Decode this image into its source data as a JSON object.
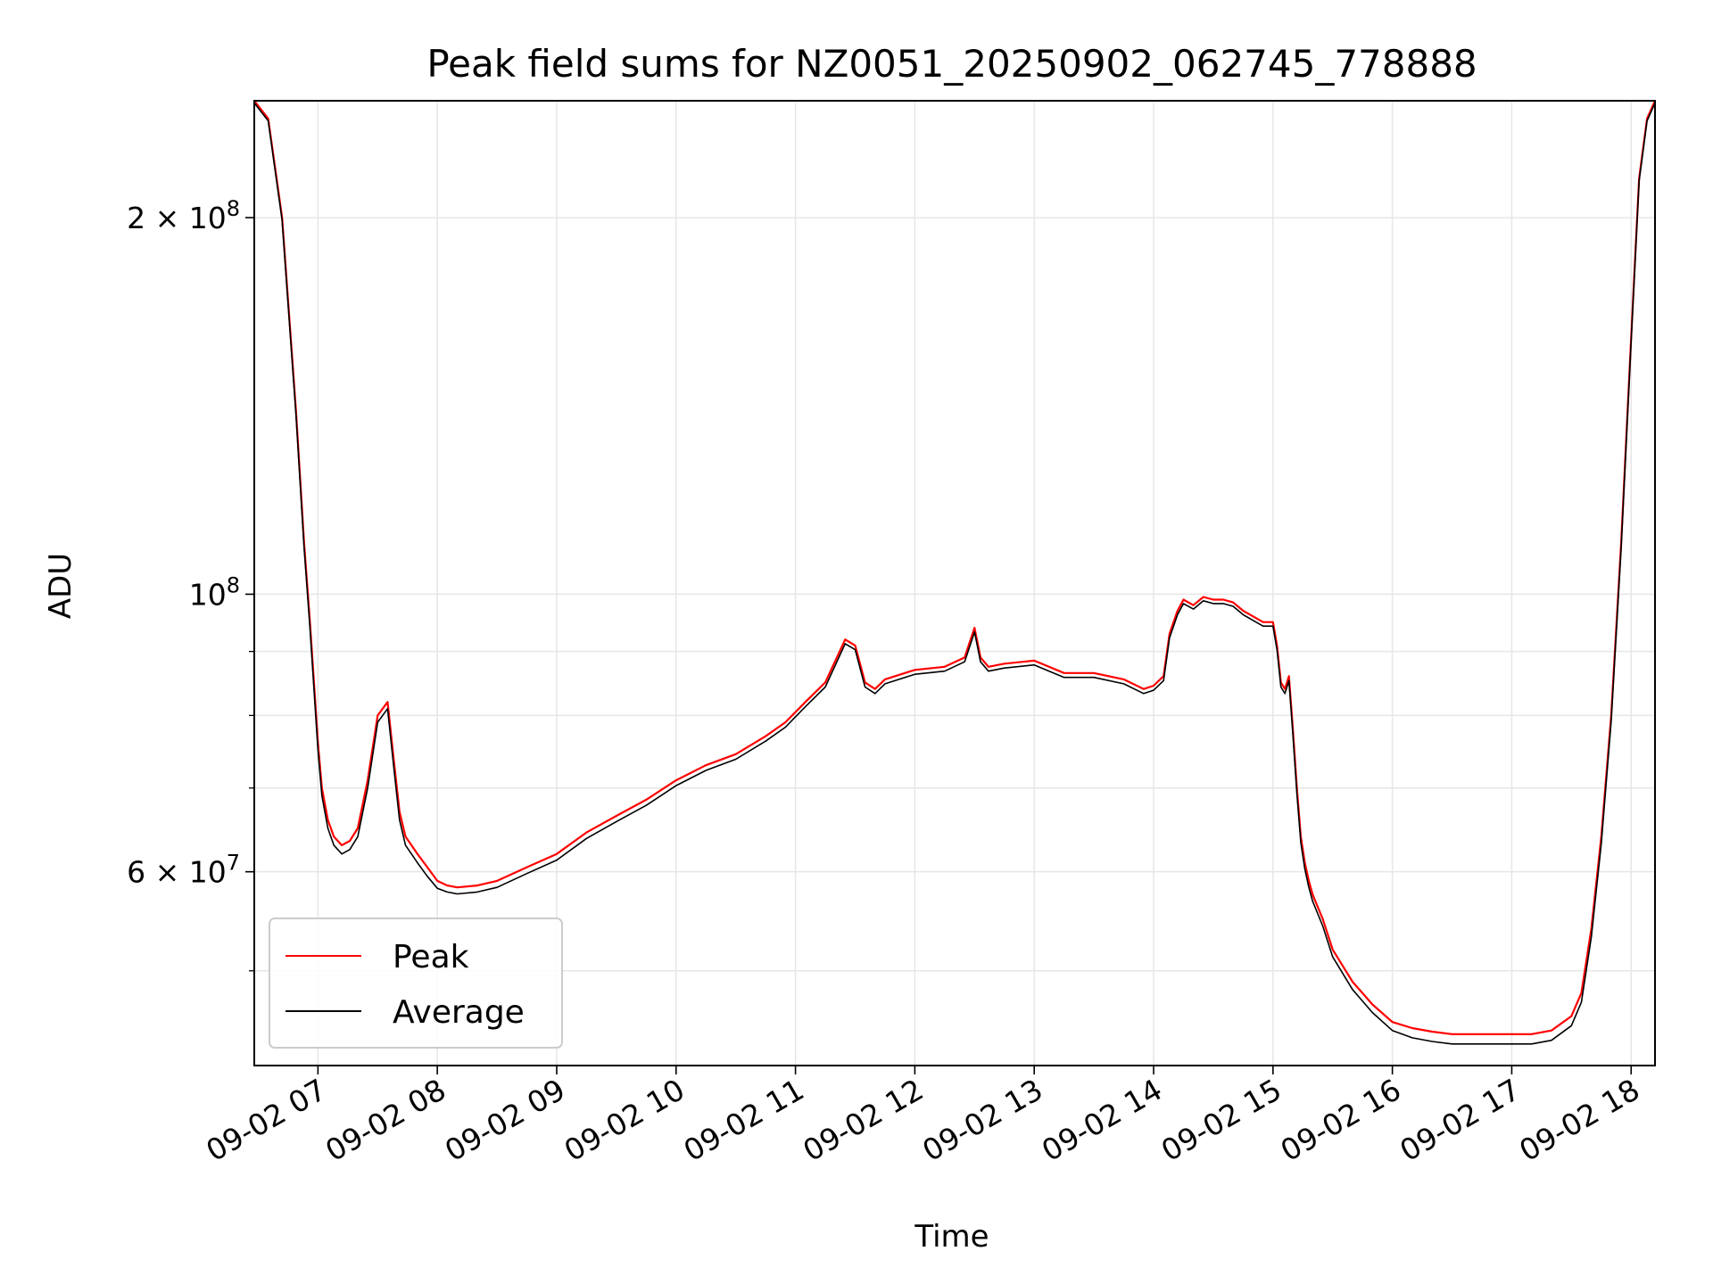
{
  "chart_data": {
    "type": "line",
    "title": "Peak field sums for NZ0051_20250902_062745_778888",
    "xlabel": "Time",
    "ylabel": "ADU",
    "x_scale": "time",
    "y_scale": "log",
    "xlim": [
      "2025-09-02 06:28",
      "2025-09-02 18:12"
    ],
    "ylim": [
      42000000,
      248000000
    ],
    "grid": true,
    "legend_position": "lower-left",
    "x_ticks": [
      {
        "value": "2025-09-02 07:00",
        "label": "09-02 07"
      },
      {
        "value": "2025-09-02 08:00",
        "label": "09-02 08"
      },
      {
        "value": "2025-09-02 09:00",
        "label": "09-02 09"
      },
      {
        "value": "2025-09-02 10:00",
        "label": "09-02 10"
      },
      {
        "value": "2025-09-02 11:00",
        "label": "09-02 11"
      },
      {
        "value": "2025-09-02 12:00",
        "label": "09-02 12"
      },
      {
        "value": "2025-09-02 13:00",
        "label": "09-02 13"
      },
      {
        "value": "2025-09-02 14:00",
        "label": "09-02 14"
      },
      {
        "value": "2025-09-02 15:00",
        "label": "09-02 15"
      },
      {
        "value": "2025-09-02 16:00",
        "label": "09-02 16"
      },
      {
        "value": "2025-09-02 17:00",
        "label": "09-02 17"
      },
      {
        "value": "2025-09-02 18:00",
        "label": "09-02 18"
      }
    ],
    "y_major_ticks": [
      {
        "value": 60000000,
        "mantissa": "6",
        "exponent": "7"
      },
      {
        "value": 100000000,
        "mantissa": "",
        "exponent": "8"
      },
      {
        "value": 200000000,
        "mantissa": "2",
        "exponent": "8"
      }
    ],
    "y_minor_ticks": [
      50000000,
      70000000,
      80000000,
      90000000
    ],
    "series": [
      {
        "name": "Peak",
        "color": "#ff0000",
        "x": [
          "2025-09-02 06:28",
          "2025-09-02 06:35",
          "2025-09-02 06:42",
          "2025-09-02 06:49",
          "2025-09-02 06:53",
          "2025-09-02 06:56",
          "2025-09-02 06:58",
          "2025-09-02 07:00",
          "2025-09-02 07:02",
          "2025-09-02 07:05",
          "2025-09-02 07:08",
          "2025-09-02 07:12",
          "2025-09-02 07:16",
          "2025-09-02 07:20",
          "2025-09-02 07:25",
          "2025-09-02 07:30",
          "2025-09-02 07:35",
          "2025-09-02 07:38",
          "2025-09-02 07:41",
          "2025-09-02 07:44",
          "2025-09-02 07:47",
          "2025-09-02 07:50",
          "2025-09-02 07:55",
          "2025-09-02 08:00",
          "2025-09-02 08:05",
          "2025-09-02 08:10",
          "2025-09-02 08:20",
          "2025-09-02 08:30",
          "2025-09-02 08:45",
          "2025-09-02 09:00",
          "2025-09-02 09:15",
          "2025-09-02 09:30",
          "2025-09-02 09:45",
          "2025-09-02 10:00",
          "2025-09-02 10:15",
          "2025-09-02 10:30",
          "2025-09-02 10:45",
          "2025-09-02 10:55",
          "2025-09-02 11:00",
          "2025-09-02 11:05",
          "2025-09-02 11:15",
          "2025-09-02 11:25",
          "2025-09-02 11:30",
          "2025-09-02 11:35",
          "2025-09-02 11:40",
          "2025-09-02 11:45",
          "2025-09-02 12:00",
          "2025-09-02 12:15",
          "2025-09-02 12:25",
          "2025-09-02 12:30",
          "2025-09-02 12:33",
          "2025-09-02 12:37",
          "2025-09-02 12:45",
          "2025-09-02 13:00",
          "2025-09-02 13:15",
          "2025-09-02 13:30",
          "2025-09-02 13:45",
          "2025-09-02 13:55",
          "2025-09-02 14:00",
          "2025-09-02 14:05",
          "2025-09-02 14:08",
          "2025-09-02 14:12",
          "2025-09-02 14:15",
          "2025-09-02 14:20",
          "2025-09-02 14:25",
          "2025-09-02 14:30",
          "2025-09-02 14:35",
          "2025-09-02 14:40",
          "2025-09-02 14:45",
          "2025-09-02 14:50",
          "2025-09-02 14:55",
          "2025-09-02 15:00",
          "2025-09-02 15:02",
          "2025-09-02 15:04",
          "2025-09-02 15:06",
          "2025-09-02 15:08",
          "2025-09-02 15:10",
          "2025-09-02 15:12",
          "2025-09-02 15:14",
          "2025-09-02 15:16",
          "2025-09-02 15:18",
          "2025-09-02 15:20",
          "2025-09-02 15:25",
          "2025-09-02 15:30",
          "2025-09-02 15:40",
          "2025-09-02 15:50",
          "2025-09-02 16:00",
          "2025-09-02 16:10",
          "2025-09-02 16:20",
          "2025-09-02 16:30",
          "2025-09-02 16:45",
          "2025-09-02 17:00",
          "2025-09-02 17:10",
          "2025-09-02 17:20",
          "2025-09-02 17:30",
          "2025-09-02 17:35",
          "2025-09-02 17:40",
          "2025-09-02 17:45",
          "2025-09-02 17:50",
          "2025-09-02 17:55",
          "2025-09-02 18:00",
          "2025-09-02 18:04",
          "2025-09-02 18:08",
          "2025-09-02 18:12"
        ],
        "values": [
          248000000,
          240000000,
          200000000,
          140000000,
          110000000,
          95000000,
          85000000,
          76000000,
          70000000,
          66000000,
          64000000,
          63000000,
          63500000,
          65000000,
          71000000,
          80000000,
          82000000,
          74000000,
          67000000,
          64000000,
          63000000,
          62000000,
          60500000,
          59000000,
          58500000,
          58300000,
          58500000,
          59000000,
          60500000,
          62000000,
          64500000,
          66500000,
          68500000,
          71000000,
          73000000,
          74500000,
          77000000,
          79000000,
          80500000,
          82000000,
          85000000,
          92000000,
          91000000,
          85000000,
          84000000,
          85500000,
          87000000,
          87500000,
          89000000,
          94000000,
          89000000,
          87500000,
          88000000,
          88500000,
          86500000,
          86500000,
          85500000,
          84000000,
          84500000,
          86000000,
          93000000,
          97000000,
          99000000,
          98000000,
          99500000,
          99000000,
          99000000,
          98500000,
          97000000,
          96000000,
          95000000,
          95000000,
          91000000,
          85000000,
          84000000,
          86000000,
          78000000,
          70000000,
          64000000,
          61000000,
          59000000,
          57500000,
          55000000,
          52000000,
          49000000,
          47000000,
          45500000,
          45000000,
          44700000,
          44500000,
          44500000,
          44500000,
          44500000,
          44800000,
          46000000,
          48000000,
          54000000,
          64000000,
          80000000,
          110000000,
          160000000,
          215000000,
          240000000,
          248000000
        ]
      },
      {
        "name": "Average",
        "color": "#000000",
        "x": [
          "2025-09-02 06:28",
          "2025-09-02 06:35",
          "2025-09-02 06:42",
          "2025-09-02 06:49",
          "2025-09-02 06:53",
          "2025-09-02 06:56",
          "2025-09-02 06:58",
          "2025-09-02 07:00",
          "2025-09-02 07:02",
          "2025-09-02 07:05",
          "2025-09-02 07:08",
          "2025-09-02 07:12",
          "2025-09-02 07:16",
          "2025-09-02 07:20",
          "2025-09-02 07:25",
          "2025-09-02 07:30",
          "2025-09-02 07:35",
          "2025-09-02 07:38",
          "2025-09-02 07:41",
          "2025-09-02 07:44",
          "2025-09-02 07:47",
          "2025-09-02 07:50",
          "2025-09-02 07:55",
          "2025-09-02 08:00",
          "2025-09-02 08:05",
          "2025-09-02 08:10",
          "2025-09-02 08:20",
          "2025-09-02 08:30",
          "2025-09-02 08:45",
          "2025-09-02 09:00",
          "2025-09-02 09:15",
          "2025-09-02 09:30",
          "2025-09-02 09:45",
          "2025-09-02 10:00",
          "2025-09-02 10:15",
          "2025-09-02 10:30",
          "2025-09-02 10:45",
          "2025-09-02 10:55",
          "2025-09-02 11:00",
          "2025-09-02 11:05",
          "2025-09-02 11:15",
          "2025-09-02 11:25",
          "2025-09-02 11:30",
          "2025-09-02 11:35",
          "2025-09-02 11:40",
          "2025-09-02 11:45",
          "2025-09-02 12:00",
          "2025-09-02 12:15",
          "2025-09-02 12:25",
          "2025-09-02 12:30",
          "2025-09-02 12:33",
          "2025-09-02 12:37",
          "2025-09-02 12:45",
          "2025-09-02 13:00",
          "2025-09-02 13:15",
          "2025-09-02 13:30",
          "2025-09-02 13:45",
          "2025-09-02 13:55",
          "2025-09-02 14:00",
          "2025-09-02 14:05",
          "2025-09-02 14:08",
          "2025-09-02 14:12",
          "2025-09-02 14:15",
          "2025-09-02 14:20",
          "2025-09-02 14:25",
          "2025-09-02 14:30",
          "2025-09-02 14:35",
          "2025-09-02 14:40",
          "2025-09-02 14:45",
          "2025-09-02 14:50",
          "2025-09-02 14:55",
          "2025-09-02 15:00",
          "2025-09-02 15:02",
          "2025-09-02 15:04",
          "2025-09-02 15:06",
          "2025-09-02 15:08",
          "2025-09-02 15:10",
          "2025-09-02 15:12",
          "2025-09-02 15:14",
          "2025-09-02 15:16",
          "2025-09-02 15:18",
          "2025-09-02 15:20",
          "2025-09-02 15:25",
          "2025-09-02 15:30",
          "2025-09-02 15:40",
          "2025-09-02 15:50",
          "2025-09-02 16:00",
          "2025-09-02 16:10",
          "2025-09-02 16:20",
          "2025-09-02 16:30",
          "2025-09-02 16:45",
          "2025-09-02 17:00",
          "2025-09-02 17:10",
          "2025-09-02 17:20",
          "2025-09-02 17:30",
          "2025-09-02 17:35",
          "2025-09-02 17:40",
          "2025-09-02 17:45",
          "2025-09-02 17:50",
          "2025-09-02 17:55",
          "2025-09-02 18:00",
          "2025-09-02 18:04",
          "2025-09-02 18:08",
          "2025-09-02 18:12"
        ],
        "values": [
          247000000,
          239000000,
          199000000,
          139000000,
          109000000,
          94000000,
          84000000,
          75000000,
          69000000,
          65000000,
          63000000,
          62000000,
          62500000,
          64000000,
          70000000,
          79000000,
          81000000,
          73000000,
          66000000,
          63000000,
          62000000,
          61000000,
          59500000,
          58200000,
          57800000,
          57600000,
          57800000,
          58300000,
          59800000,
          61300000,
          63800000,
          65800000,
          67800000,
          70300000,
          72300000,
          73800000,
          76300000,
          78300000,
          79800000,
          81300000,
          84300000,
          91300000,
          90300000,
          84300000,
          83300000,
          84800000,
          86300000,
          86800000,
          88300000,
          93300000,
          88300000,
          86800000,
          87300000,
          87800000,
          85800000,
          85800000,
          84800000,
          83300000,
          83800000,
          85300000,
          92300000,
          96300000,
          98300000,
          97300000,
          98800000,
          98300000,
          98300000,
          97800000,
          96300000,
          95300000,
          94300000,
          94300000,
          90300000,
          84300000,
          83300000,
          85300000,
          77300000,
          69300000,
          63300000,
          60300000,
          58300000,
          56800000,
          54300000,
          51300000,
          48300000,
          46300000,
          44800000,
          44200000,
          43900000,
          43700000,
          43700000,
          43700000,
          43700000,
          44000000,
          45200000,
          47200000,
          53200000,
          63200000,
          79200000,
          109000000,
          159000000,
          214000000,
          239000000,
          247000000
        ]
      }
    ]
  }
}
